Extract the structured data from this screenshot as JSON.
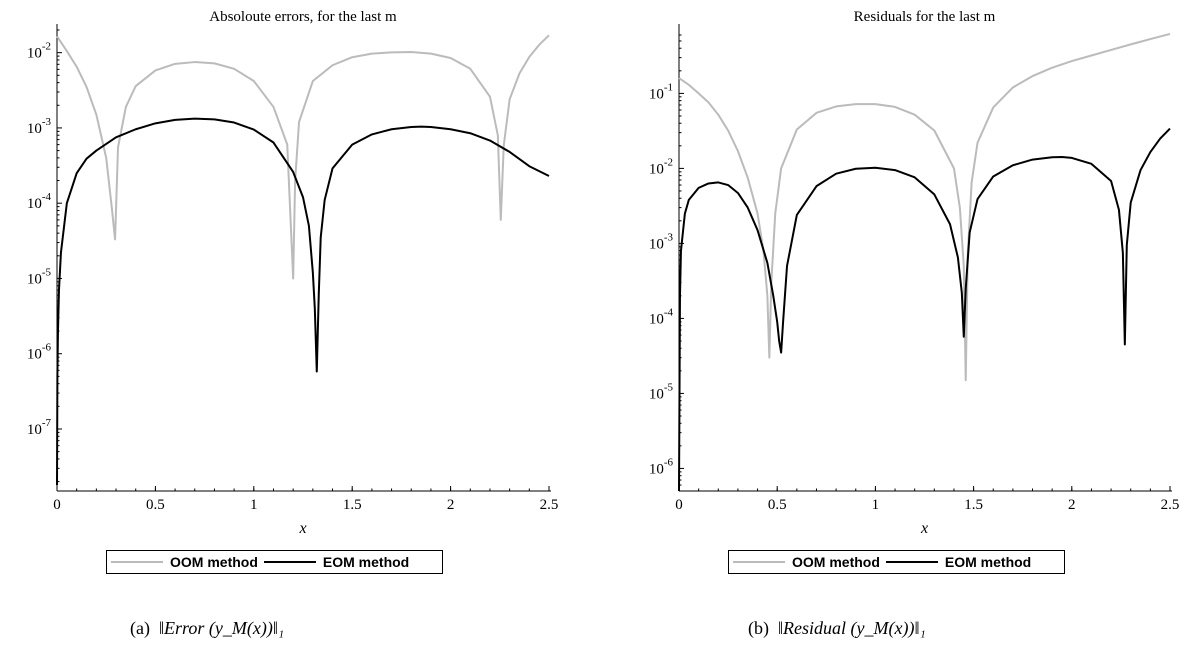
{
  "chart_data": [
    {
      "type": "line",
      "title": "Absoloute errors, for the last m",
      "xlabel": "x",
      "ylabel": "",
      "xlim": [
        0,
        2.5
      ],
      "ylim": [
        1.5e-08,
        0.02
      ],
      "yscale": "log",
      "xticks": [
        "0",
        "0.5",
        "1",
        "1.5",
        "2",
        "2.5"
      ],
      "yticks": [
        {
          "base": "10",
          "exp": "-7",
          "value": 1e-07
        },
        {
          "base": "10",
          "exp": "-6",
          "value": 1e-06
        },
        {
          "base": "10",
          "exp": "-5",
          "value": 1e-05
        },
        {
          "base": "10",
          "exp": "-4",
          "value": 0.0001
        },
        {
          "base": "10",
          "exp": "-3",
          "value": 0.001
        },
        {
          "base": "10",
          "exp": "-2",
          "value": 0.01
        }
      ],
      "grid": false,
      "legend_position": "bottom",
      "series": [
        {
          "name": "OOM method",
          "color": "#bbbbbb",
          "x": [
            0,
            0.05,
            0.1,
            0.15,
            0.2,
            0.25,
            0.28,
            0.295,
            0.31,
            0.35,
            0.4,
            0.5,
            0.6,
            0.7,
            0.8,
            0.9,
            1.0,
            1.1,
            1.17,
            1.2,
            1.21,
            1.23,
            1.3,
            1.4,
            1.5,
            1.6,
            1.7,
            1.8,
            1.9,
            2.0,
            2.1,
            2.2,
            2.24,
            2.255,
            2.27,
            2.3,
            2.35,
            2.4,
            2.45,
            2.5
          ],
          "y": [
            0.0165,
            0.0105,
            0.0065,
            0.0035,
            0.0015,
            0.0004,
            8e-05,
            3.3e-05,
            0.00055,
            0.0019,
            0.0036,
            0.0058,
            0.0071,
            0.0075,
            0.0072,
            0.0061,
            0.0042,
            0.0019,
            0.0006,
            1e-05,
            0.0002,
            0.0012,
            0.0042,
            0.0068,
            0.0087,
            0.0097,
            0.0101,
            0.0102,
            0.0097,
            0.0085,
            0.0061,
            0.0026,
            0.0008,
            6e-05,
            0.00058,
            0.0024,
            0.0053,
            0.0088,
            0.0127,
            0.017
          ]
        },
        {
          "name": "EOM method",
          "color": "#000000",
          "x": [
            0,
            0.002,
            0.005,
            0.01,
            0.02,
            0.05,
            0.1,
            0.15,
            0.2,
            0.3,
            0.4,
            0.5,
            0.6,
            0.7,
            0.8,
            0.9,
            1.0,
            1.1,
            1.2,
            1.25,
            1.28,
            1.3,
            1.31,
            1.32,
            1.33,
            1.34,
            1.36,
            1.4,
            1.5,
            1.6,
            1.7,
            1.8,
            1.85,
            1.9,
            2.0,
            2.1,
            2.2,
            2.3,
            2.4,
            2.5
          ],
          "y": [
            1.8e-08,
            5e-07,
            2e-06,
            7e-06,
            2.2e-05,
            0.0001,
            0.00025,
            0.00039,
            0.0005,
            0.00075,
            0.00096,
            0.00115,
            0.00128,
            0.00133,
            0.0013,
            0.00118,
            0.00095,
            0.00064,
            0.00026,
            0.00012,
            5e-05,
            1.2e-05,
            4e-06,
            5.8e-07,
            6e-06,
            3.5e-05,
            0.00011,
            0.00029,
            0.0006,
            0.00082,
            0.00096,
            0.00103,
            0.00104,
            0.00103,
            0.00096,
            0.00085,
            0.00068,
            0.00048,
            0.00031,
            0.00023
          ]
        }
      ]
    },
    {
      "type": "line",
      "title": "Residuals for the last m",
      "xlabel": "x",
      "ylabel": "",
      "xlim": [
        0,
        2.5
      ],
      "ylim": [
        5e-07,
        0.7
      ],
      "yscale": "log",
      "xticks": [
        "0",
        "0.5",
        "1",
        "1.5",
        "2",
        "2.5"
      ],
      "yticks": [
        {
          "base": "10",
          "exp": "-6",
          "value": 1e-06
        },
        {
          "base": "10",
          "exp": "-5",
          "value": 1e-05
        },
        {
          "base": "10",
          "exp": "-4",
          "value": 0.0001
        },
        {
          "base": "10",
          "exp": "-3",
          "value": 0.001
        },
        {
          "base": "10",
          "exp": "-2",
          "value": 0.01
        },
        {
          "base": "10",
          "exp": "-1",
          "value": 0.1
        }
      ],
      "grid": false,
      "legend_position": "bottom",
      "series": [
        {
          "name": "OOM method",
          "color": "#bbbbbb",
          "x": [
            0,
            0.05,
            0.1,
            0.15,
            0.2,
            0.25,
            0.3,
            0.35,
            0.4,
            0.43,
            0.45,
            0.46,
            0.47,
            0.49,
            0.52,
            0.6,
            0.7,
            0.8,
            0.9,
            1.0,
            1.1,
            1.2,
            1.3,
            1.4,
            1.43,
            1.45,
            1.46,
            1.47,
            1.49,
            1.52,
            1.6,
            1.7,
            1.8,
            1.9,
            2.0,
            2.1,
            2.2,
            2.3,
            2.4,
            2.5
          ],
          "y": [
            0.16,
            0.13,
            0.1,
            0.076,
            0.052,
            0.032,
            0.017,
            0.0075,
            0.0025,
            0.0008,
            0.0002,
            3e-05,
            0.0003,
            0.0025,
            0.01,
            0.033,
            0.055,
            0.067,
            0.072,
            0.072,
            0.066,
            0.052,
            0.032,
            0.01,
            0.003,
            0.0005,
            1.5e-05,
            0.0007,
            0.0065,
            0.022,
            0.065,
            0.12,
            0.17,
            0.22,
            0.27,
            0.32,
            0.38,
            0.45,
            0.53,
            0.62
          ]
        },
        {
          "name": "EOM method",
          "color": "#000000",
          "x": [
            0,
            0.005,
            0.01,
            0.03,
            0.05,
            0.1,
            0.15,
            0.2,
            0.25,
            0.3,
            0.35,
            0.4,
            0.45,
            0.48,
            0.5,
            0.51,
            0.52,
            0.53,
            0.55,
            0.6,
            0.7,
            0.8,
            0.9,
            1.0,
            1.1,
            1.2,
            1.3,
            1.38,
            1.42,
            1.44,
            1.45,
            1.46,
            1.48,
            1.52,
            1.6,
            1.7,
            1.8,
            1.9,
            1.95,
            2.0,
            2.1,
            2.2,
            2.24,
            2.26,
            2.27,
            2.28,
            2.3,
            2.35,
            2.4,
            2.45,
            2.5
          ],
          "y": [
            5e-07,
            0.0002,
            0.0008,
            0.0025,
            0.0038,
            0.0055,
            0.0063,
            0.0065,
            0.006,
            0.0047,
            0.003,
            0.0015,
            0.00055,
            0.0002,
            9e-05,
            5e-05,
            3.5e-05,
            9e-05,
            0.0005,
            0.0024,
            0.0058,
            0.0085,
            0.0099,
            0.0102,
            0.0095,
            0.0076,
            0.0045,
            0.0018,
            0.00065,
            0.00022,
            5.7e-05,
            0.00025,
            0.0014,
            0.0039,
            0.0078,
            0.011,
            0.0131,
            0.0141,
            0.0142,
            0.0138,
            0.0115,
            0.0068,
            0.0028,
            0.00075,
            4.5e-05,
            0.00095,
            0.0035,
            0.0095,
            0.0165,
            0.025,
            0.034
          ]
        }
      ]
    }
  ],
  "captions": [
    {
      "label": "(a)",
      "formula": "‖Error (y_M(x))‖₁"
    },
    {
      "label": "(b)",
      "formula": "‖Residual (y_M(x))‖₁"
    }
  ]
}
